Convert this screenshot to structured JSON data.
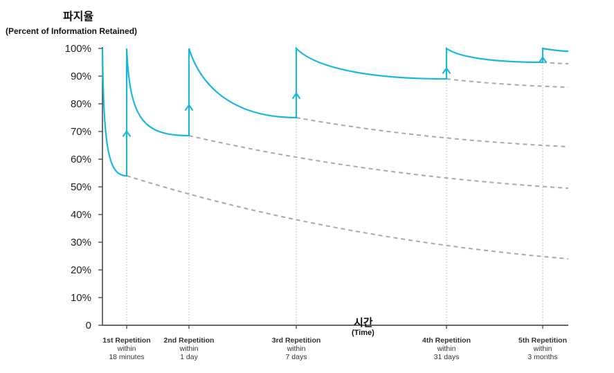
{
  "chart_data": {
    "type": "line",
    "ylabel": "파지율",
    "ylabel_sub": "(Percent of Information Retained)",
    "xlabel": "시간",
    "xlabel_sub": "(Time)",
    "ylim": [
      0,
      100
    ],
    "ytick_labels": [
      "0",
      "10%",
      "20%",
      "30%",
      "40%",
      "50%",
      "60%",
      "70%",
      "80%",
      "90%",
      "100%"
    ],
    "repetitions": [
      {
        "line1": "1st Repetition",
        "line2": "within",
        "line3": "18 minutes"
      },
      {
        "line1": "2nd Repetition",
        "line2": "within",
        "line3": "1 day"
      },
      {
        "line1": "3rd Repetition",
        "line2": "within",
        "line3": "7 days"
      },
      {
        "line1": "4th Repetition",
        "line2": "within",
        "line3": "31 days"
      },
      {
        "line1": "5th Repetition",
        "line2": "within",
        "line3": "3 months"
      }
    ],
    "retention_before_review": [
      100,
      54,
      68.5,
      75,
      89,
      95
    ],
    "retention_at_end": 99,
    "unreviewed_decay_end": [
      24,
      49.5,
      64.5,
      86,
      94.5
    ],
    "colors": {
      "reviewed": "#1ab8d8",
      "forgetting": "#a8a8a8",
      "axis": "#333333",
      "marker_line": "#b0b0b0"
    }
  }
}
